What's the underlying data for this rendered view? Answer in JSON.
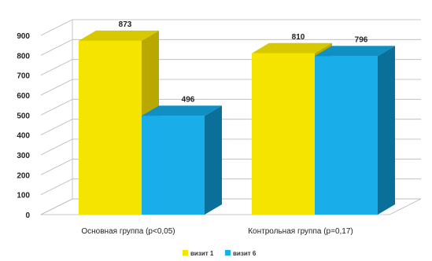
{
  "chart_data": {
    "type": "bar",
    "categories": [
      "Основная группа (p<0,05)",
      "Контрольная группа (p=0,17)"
    ],
    "series": [
      {
        "name": "визит 1",
        "values": [
          873,
          810
        ],
        "color": "#f5e400",
        "top_color": "#d8c800",
        "side_color": "#b9a800"
      },
      {
        "name": "визит 6",
        "values": [
          496,
          796
        ],
        "color": "#19aeea",
        "top_color": "#0f8fc2",
        "side_color": "#0a6f99"
      }
    ],
    "title": "",
    "xlabel": "",
    "ylabel": "",
    "ylim": [
      0,
      900
    ],
    "yticks": [
      0,
      100,
      200,
      300,
      400,
      500,
      600,
      700,
      800,
      900
    ],
    "grid": true,
    "legend_position": "bottom",
    "data_labels": true
  }
}
